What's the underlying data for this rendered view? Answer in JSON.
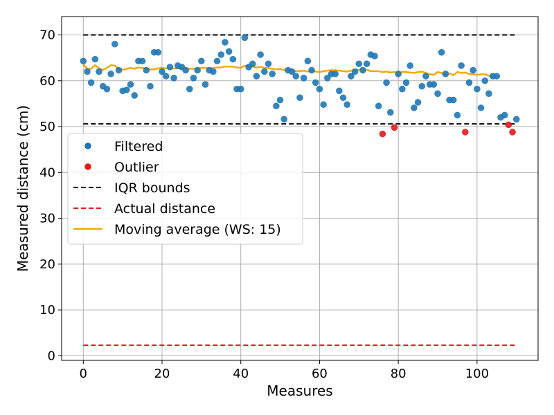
{
  "chart_data": {
    "type": "scatter",
    "xlabel": "Measures",
    "ylabel": "Measured distance (cm)",
    "xlim": [
      -5.5,
      115.5
    ],
    "ylim": [
      -1,
      74
    ],
    "x_ticks": [
      0,
      20,
      40,
      60,
      80,
      100
    ],
    "y_ticks": [
      0,
      10,
      20,
      30,
      40,
      50,
      60,
      70
    ],
    "grid": true,
    "legend_position": "center-left",
    "series": [
      {
        "name": "Filtered",
        "kind": "scatter",
        "color": "#1f77b4",
        "points": [
          [
            0,
            64.3
          ],
          [
            1,
            62.0
          ],
          [
            2,
            59.6
          ],
          [
            3,
            64.7
          ],
          [
            4,
            62.0
          ],
          [
            5,
            58.8
          ],
          [
            6,
            58.2
          ],
          [
            7,
            61.5
          ],
          [
            8,
            68.0
          ],
          [
            9,
            62.3
          ],
          [
            10,
            57.8
          ],
          [
            11,
            58.0
          ],
          [
            12,
            59.2
          ],
          [
            13,
            56.8
          ],
          [
            14,
            64.3
          ],
          [
            15,
            64.3
          ],
          [
            16,
            62.3
          ],
          [
            17,
            58.8
          ],
          [
            18,
            66.2
          ],
          [
            19,
            66.2
          ],
          [
            20,
            62.0
          ],
          [
            21,
            61.0
          ],
          [
            22,
            63.0
          ],
          [
            23,
            60.6
          ],
          [
            24,
            63.3
          ],
          [
            25,
            63.0
          ],
          [
            26,
            62.3
          ],
          [
            27,
            58.2
          ],
          [
            28,
            60.6
          ],
          [
            29,
            62.3
          ],
          [
            30,
            64.3
          ],
          [
            31,
            59.2
          ],
          [
            32,
            62.3
          ],
          [
            33,
            62.0
          ],
          [
            34,
            64.3
          ],
          [
            35,
            65.7
          ],
          [
            36,
            68.4
          ],
          [
            37,
            66.4
          ],
          [
            38,
            64.7
          ],
          [
            39,
            58.2
          ],
          [
            40,
            58.2
          ],
          [
            41,
            69.4
          ],
          [
            42,
            63.0
          ],
          [
            43,
            63.7
          ],
          [
            44,
            61.0
          ],
          [
            45,
            65.7
          ],
          [
            46,
            62.0
          ],
          [
            47,
            63.7
          ],
          [
            48,
            61.5
          ],
          [
            49,
            54.5
          ],
          [
            50,
            55.8
          ],
          [
            51,
            51.6
          ],
          [
            52,
            62.3
          ],
          [
            53,
            62.0
          ],
          [
            54,
            61.0
          ],
          [
            55,
            56.3
          ],
          [
            56,
            60.6
          ],
          [
            57,
            64.3
          ],
          [
            58,
            62.3
          ],
          [
            59,
            59.6
          ],
          [
            60,
            58.2
          ],
          [
            61,
            54.8
          ],
          [
            62,
            60.6
          ],
          [
            63,
            61.5
          ],
          [
            64,
            61.5
          ],
          [
            65,
            57.8
          ],
          [
            66,
            56.3
          ],
          [
            67,
            54.8
          ],
          [
            68,
            61.0
          ],
          [
            69,
            62.0
          ],
          [
            70,
            63.7
          ],
          [
            71,
            62.3
          ],
          [
            72,
            63.7
          ],
          [
            73,
            65.7
          ],
          [
            74,
            65.4
          ],
          [
            75,
            54.5
          ],
          [
            77,
            59.6
          ],
          [
            78,
            53.1
          ],
          [
            80,
            61.5
          ],
          [
            81,
            58.2
          ],
          [
            82,
            59.6
          ],
          [
            83,
            63.3
          ],
          [
            84,
            54.1
          ],
          [
            85,
            55.3
          ],
          [
            86,
            58.8
          ],
          [
            87,
            61.0
          ],
          [
            88,
            59.2
          ],
          [
            89,
            59.2
          ],
          [
            90,
            57.2
          ],
          [
            91,
            66.2
          ],
          [
            92,
            61.5
          ],
          [
            93,
            55.8
          ],
          [
            94,
            55.8
          ],
          [
            95,
            52.5
          ],
          [
            96,
            63.3
          ],
          [
            98,
            59.6
          ],
          [
            99,
            62.3
          ],
          [
            100,
            58.2
          ],
          [
            101,
            54.1
          ],
          [
            102,
            60.0
          ],
          [
            103,
            57.2
          ],
          [
            104,
            61.0
          ],
          [
            105,
            61.0
          ],
          [
            106,
            52.0
          ],
          [
            107,
            52.5
          ],
          [
            110,
            51.6
          ]
        ]
      },
      {
        "name": "Outlier",
        "kind": "scatter",
        "color": "#e41a1c",
        "points": [
          [
            76,
            48.4
          ],
          [
            79,
            49.8
          ],
          [
            97,
            48.8
          ],
          [
            108,
            50.4
          ],
          [
            109,
            48.8
          ]
        ]
      },
      {
        "name": "IQR bounds",
        "kind": "hline",
        "color": "#000000",
        "dash": true,
        "values": [
          70.0,
          50.6
        ],
        "x_range": [
          0,
          110
        ]
      },
      {
        "name": "Actual distance",
        "kind": "hline",
        "color": "#e41a1c",
        "dash": true,
        "values": [
          2.3
        ],
        "x_range": [
          0,
          110
        ]
      },
      {
        "name": "Moving average (WS: 15)",
        "kind": "line",
        "color": "#f5a800",
        "points": [
          [
            0,
            63.6
          ],
          [
            1,
            62.6
          ],
          [
            2,
            62.6
          ],
          [
            3,
            63.4
          ],
          [
            4,
            62.7
          ],
          [
            5,
            62.4
          ],
          [
            6,
            62.8
          ],
          [
            7,
            63.4
          ],
          [
            8,
            63.3
          ],
          [
            9,
            62.6
          ],
          [
            10,
            62.4
          ],
          [
            11,
            62.6
          ],
          [
            12,
            62.8
          ],
          [
            13,
            62.6
          ],
          [
            14,
            62.9
          ],
          [
            15,
            62.8
          ],
          [
            16,
            62.7
          ],
          [
            17,
            62.5
          ],
          [
            18,
            62.5
          ],
          [
            19,
            62.7
          ],
          [
            20,
            62.8
          ],
          [
            21,
            62.7
          ],
          [
            22,
            62.6
          ],
          [
            23,
            62.7
          ],
          [
            24,
            62.7
          ],
          [
            25,
            62.7
          ],
          [
            26,
            62.7
          ],
          [
            27,
            62.6
          ],
          [
            28,
            62.6
          ],
          [
            29,
            62.6
          ],
          [
            30,
            62.8
          ],
          [
            31,
            62.8
          ],
          [
            32,
            62.7
          ],
          [
            33,
            62.8
          ],
          [
            34,
            62.9
          ],
          [
            35,
            62.9
          ],
          [
            36,
            63.1
          ],
          [
            37,
            63.1
          ],
          [
            38,
            63.1
          ],
          [
            39,
            62.9
          ],
          [
            40,
            62.8
          ],
          [
            41,
            63.3
          ],
          [
            42,
            63.1
          ],
          [
            43,
            63.1
          ],
          [
            44,
            62.9
          ],
          [
            45,
            63.0
          ],
          [
            46,
            62.8
          ],
          [
            47,
            62.8
          ],
          [
            48,
            62.6
          ],
          [
            49,
            62.5
          ],
          [
            50,
            62.6
          ],
          [
            51,
            62.3
          ],
          [
            52,
            62.4
          ],
          [
            53,
            62.3
          ],
          [
            54,
            62.1
          ],
          [
            55,
            62.1
          ],
          [
            56,
            62.2
          ],
          [
            57,
            62.0
          ],
          [
            58,
            62.2
          ],
          [
            59,
            62.0
          ],
          [
            60,
            61.9
          ],
          [
            61,
            62.1
          ],
          [
            62,
            62.2
          ],
          [
            63,
            62.3
          ],
          [
            64,
            62.3
          ],
          [
            65,
            62.2
          ],
          [
            66,
            62.1
          ],
          [
            67,
            62.0
          ],
          [
            68,
            62.2
          ],
          [
            69,
            62.3
          ],
          [
            70,
            62.4
          ],
          [
            71,
            62.4
          ],
          [
            72,
            62.4
          ],
          [
            73,
            62.1
          ],
          [
            74,
            62.1
          ],
          [
            75,
            62.1
          ],
          [
            76,
            61.9
          ],
          [
            77,
            62.0
          ],
          [
            78,
            61.8
          ],
          [
            79,
            61.9
          ],
          [
            80,
            61.7
          ],
          [
            81,
            61.9
          ],
          [
            82,
            61.9
          ],
          [
            83,
            61.8
          ],
          [
            84,
            61.7
          ],
          [
            85,
            61.9
          ],
          [
            86,
            62.0
          ],
          [
            87,
            61.7
          ],
          [
            88,
            61.4
          ],
          [
            89,
            61.3
          ],
          [
            90,
            61.9
          ],
          [
            91,
            61.7
          ],
          [
            92,
            61.4
          ],
          [
            93,
            61.6
          ],
          [
            94,
            61.2
          ],
          [
            95,
            61.9
          ],
          [
            96,
            61.7
          ],
          [
            97,
            61.8
          ],
          [
            98,
            61.5
          ],
          [
            99,
            61.4
          ],
          [
            100,
            61.3
          ],
          [
            101,
            61.4
          ],
          [
            102,
            61.4
          ],
          [
            103,
            61.1
          ],
          [
            104,
            60.9
          ],
          [
            105,
            60.9
          ]
        ]
      }
    ]
  }
}
